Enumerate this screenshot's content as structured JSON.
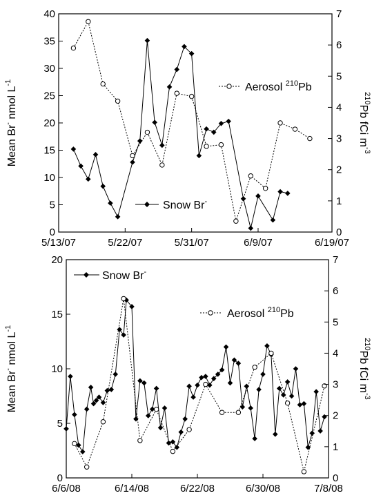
{
  "chart_data": [
    {
      "type": "line",
      "panel": "top",
      "ylabel_left": {
        "main": "Mean Br",
        "sup": "-",
        "unit": " nmol L",
        "unit_sup": "-1"
      },
      "ylabel_right": {
        "pre_sup": "210",
        "main": "Pb fCi m",
        "sup": "-3"
      },
      "x_ticks": [
        "5/13/07",
        "5/22/07",
        "5/31/07",
        "6/9/07",
        "6/19/07"
      ],
      "x_range": [
        "5/13/07",
        "6/19/07"
      ],
      "y_left_range": [
        0,
        40
      ],
      "y_left_ticks": [
        "0",
        "5",
        "10",
        "15",
        "20",
        "25",
        "30",
        "35",
        "40"
      ],
      "y_right_range": [
        0,
        7
      ],
      "y_right_ticks": [
        "0",
        "1",
        "2",
        "3",
        "4",
        "5",
        "6",
        "7"
      ],
      "legend_position": "mixed",
      "series": [
        {
          "name": "Snow Br",
          "name_sup": "-",
          "axis": "left",
          "marker": "filled-diamond",
          "line": "solid",
          "points": [
            [
              "5/15/07",
              15.2
            ],
            [
              "5/16/07",
              12.1
            ],
            [
              "5/17/07",
              9.7
            ],
            [
              "5/18/07",
              14.2
            ],
            [
              "5/19/07",
              8.4
            ],
            [
              "5/20/07",
              5.3
            ],
            [
              "5/21/07",
              2.8
            ],
            [
              "5/23/07",
              12.8
            ],
            [
              "5/24/07",
              16.7
            ],
            [
              "5/25/07",
              35.1
            ],
            [
              "5/26/07",
              20.1
            ],
            [
              "5/27/07",
              15.9
            ],
            [
              "5/28/07",
              26.6
            ],
            [
              "5/29/07",
              29.8
            ],
            [
              "5/30/07",
              34.0
            ],
            [
              "5/31/07",
              32.7
            ],
            [
              "6/1/07",
              14.0
            ],
            [
              "6/2/07",
              18.9
            ],
            [
              "6/3/07",
              18.3
            ],
            [
              "6/4/07",
              19.9
            ],
            [
              "6/5/07",
              20.3
            ],
            [
              "6/7/07",
              6.1
            ],
            [
              "6/8/07",
              0.7
            ],
            [
              "6/9/07",
              6.6
            ],
            [
              "6/11/07",
              2.2
            ],
            [
              "6/12/07",
              7.4
            ],
            [
              "6/13/07",
              7.1
            ]
          ]
        },
        {
          "name": "Aerosol",
          "name_sup": "210",
          "name_suffix": "Pb",
          "axis": "right",
          "marker": "open-circle",
          "line": "dotted",
          "points": [
            [
              "5/15/07",
              5.9
            ],
            [
              "5/17/07",
              6.75
            ],
            [
              "5/19/07",
              4.75
            ],
            [
              "5/21/07",
              4.2
            ],
            [
              "5/23/07",
              2.45
            ],
            [
              "5/25/07",
              3.2
            ],
            [
              "5/27/07",
              2.15
            ],
            [
              "5/29/07",
              4.45
            ],
            [
              "5/31/07",
              4.35
            ],
            [
              "6/2/07",
              2.75
            ],
            [
              "6/4/07",
              2.8
            ],
            [
              "6/6/07",
              0.35
            ],
            [
              "6/8/07",
              1.8
            ],
            [
              "6/10/07",
              1.4
            ],
            [
              "6/12/07",
              3.5
            ],
            [
              "6/14/07",
              3.3
            ],
            [
              "6/16/07",
              3.0
            ]
          ]
        }
      ]
    },
    {
      "type": "line",
      "panel": "bottom",
      "ylabel_left": {
        "main": "Mean Br",
        "sup": "-",
        "unit": " nmol L",
        "unit_sup": "-1"
      },
      "ylabel_right": {
        "pre_sup": "210",
        "main": "Pb fCi m",
        "sup": "-3"
      },
      "x_ticks": [
        "6/6/08",
        "6/14/08",
        "6/22/08",
        "6/30/08",
        "7/8/08"
      ],
      "x_range": [
        "6/6/08",
        "7/8/08"
      ],
      "y_left_range": [
        0,
        20
      ],
      "y_left_ticks": [
        "0",
        "5",
        "10",
        "15",
        "20"
      ],
      "y_right_range": [
        0,
        7
      ],
      "y_right_ticks": [
        "0",
        "1",
        "2",
        "3",
        "4",
        "5",
        "6",
        "7"
      ],
      "legend_position": "mixed",
      "series": [
        {
          "name": "Snow Br",
          "name_sup": "-",
          "axis": "left",
          "marker": "filled-diamond",
          "line": "solid",
          "points": [
            [
              "6/6/08 00:00",
              4.5
            ],
            [
              "6/6/08 12:00",
              9.3
            ],
            [
              "6/7/08 00:00",
              5.8
            ],
            [
              "6/7/08 12:00",
              3.0
            ],
            [
              "6/8/08 00:00",
              2.4
            ],
            [
              "6/8/08 12:00",
              6.3
            ],
            [
              "6/9/08 00:00",
              8.3
            ],
            [
              "6/9/08 08:00",
              6.8
            ],
            [
              "6/9/08 16:00",
              7.1
            ],
            [
              "6/10/08 00:00",
              7.4
            ],
            [
              "6/10/08 12:00",
              6.9
            ],
            [
              "6/11/08 00:00",
              8.0
            ],
            [
              "6/11/08 12:00",
              8.1
            ],
            [
              "6/12/08 00:00",
              9.5
            ],
            [
              "6/12/08 12:00",
              13.6
            ],
            [
              "6/13/08 00:00",
              13.1
            ],
            [
              "6/13/08 08:00",
              16.3
            ],
            [
              "6/14/08 00:00",
              15.7
            ],
            [
              "6/14/08 12:00",
              5.4
            ],
            [
              "6/15/08 00:00",
              8.9
            ],
            [
              "6/15/08 12:00",
              8.7
            ],
            [
              "6/16/08 00:00",
              5.7
            ],
            [
              "6/16/08 12:00",
              6.3
            ],
            [
              "6/17/08 00:00",
              8.2
            ],
            [
              "6/17/08 12:00",
              4.6
            ],
            [
              "6/18/08 00:00",
              6.4
            ],
            [
              "6/18/08 12:00",
              3.2
            ],
            [
              "6/19/08 00:00",
              3.3
            ],
            [
              "6/19/08 12:00",
              2.8
            ],
            [
              "6/20/08 00:00",
              4.2
            ],
            [
              "6/20/08 12:00",
              5.4
            ],
            [
              "6/21/08 00:00",
              8.4
            ],
            [
              "6/21/08 12:00",
              7.4
            ],
            [
              "6/22/08 00:00",
              8.5
            ],
            [
              "6/22/08 12:00",
              9.2
            ],
            [
              "6/23/08 00:00",
              9.3
            ],
            [
              "6/23/08 12:00",
              8.5
            ],
            [
              "6/24/08 00:00",
              9.1
            ],
            [
              "6/24/08 12:00",
              9.5
            ],
            [
              "6/25/08 00:00",
              9.9
            ],
            [
              "6/25/08 12:00",
              12.0
            ],
            [
              "6/26/08 00:00",
              8.7
            ],
            [
              "6/26/08 12:00",
              10.8
            ],
            [
              "6/27/08 00:00",
              10.5
            ],
            [
              "6/27/08 12:00",
              6.5
            ],
            [
              "6/28/08 00:00",
              8.4
            ],
            [
              "6/28/08 12:00",
              6.4
            ],
            [
              "6/29/08 00:00",
              3.6
            ],
            [
              "6/29/08 12:00",
              8.1
            ],
            [
              "6/30/08 00:00",
              9.5
            ],
            [
              "6/30/08 12:00",
              12.1
            ],
            [
              "7/1/08 00:00",
              11.3
            ],
            [
              "7/1/08 12:00",
              4.0
            ],
            [
              "7/2/08 00:00",
              8.2
            ],
            [
              "7/2/08 12:00",
              7.6
            ],
            [
              "7/3/08 00:00",
              8.8
            ],
            [
              "7/3/08 12:00",
              7.5
            ],
            [
              "7/4/08 00:00",
              10.0
            ],
            [
              "7/4/08 12:00",
              6.7
            ],
            [
              "7/5/08 00:00",
              6.8
            ],
            [
              "7/5/08 12:00",
              2.8
            ],
            [
              "7/6/08 00:00",
              4.1
            ],
            [
              "7/6/08 12:00",
              7.9
            ],
            [
              "7/7/08 00:00",
              4.3
            ],
            [
              "7/7/08 12:00",
              5.6
            ]
          ]
        },
        {
          "name": "Aerosol",
          "name_sup": "210",
          "name_suffix": "Pb",
          "axis": "right",
          "marker": "open-circle",
          "line": "dotted",
          "points": [
            [
              "6/7/08 00:00",
              1.1
            ],
            [
              "6/8/08 12:00",
              0.35
            ],
            [
              "6/10/08 12:00",
              1.8
            ],
            [
              "6/13/08 00:00",
              5.75
            ],
            [
              "6/15/08 00:00",
              1.2
            ],
            [
              "6/17/08 00:00",
              2.2
            ],
            [
              "6/19/08 00:00",
              0.85
            ],
            [
              "6/21/08 00:00",
              1.55
            ],
            [
              "6/23/08 00:00",
              3.0
            ],
            [
              "6/25/08 00:00",
              2.1
            ],
            [
              "6/27/08 00:00",
              2.1
            ],
            [
              "6/29/08 00:00",
              3.55
            ],
            [
              "7/1/08 00:00",
              4.0
            ],
            [
              "7/3/08 00:00",
              2.4
            ],
            [
              "7/5/08 00:00",
              0.2
            ],
            [
              "7/7/08 12:00",
              2.95
            ]
          ]
        }
      ]
    }
  ]
}
